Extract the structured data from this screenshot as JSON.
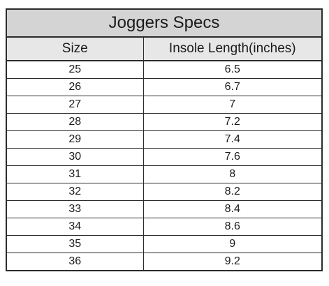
{
  "table": {
    "title": "Joggers Specs",
    "columns": [
      "Size",
      "Insole Length(inches)"
    ],
    "rows": [
      [
        "25",
        "6.5"
      ],
      [
        "26",
        "6.7"
      ],
      [
        "27",
        "7"
      ],
      [
        "28",
        "7.2"
      ],
      [
        "29",
        "7.4"
      ],
      [
        "30",
        "7.6"
      ],
      [
        "31",
        "8"
      ],
      [
        "32",
        "8.2"
      ],
      [
        "33",
        "8.4"
      ],
      [
        "34",
        "8.6"
      ],
      [
        "35",
        "9"
      ],
      [
        "36",
        "9.2"
      ]
    ]
  }
}
